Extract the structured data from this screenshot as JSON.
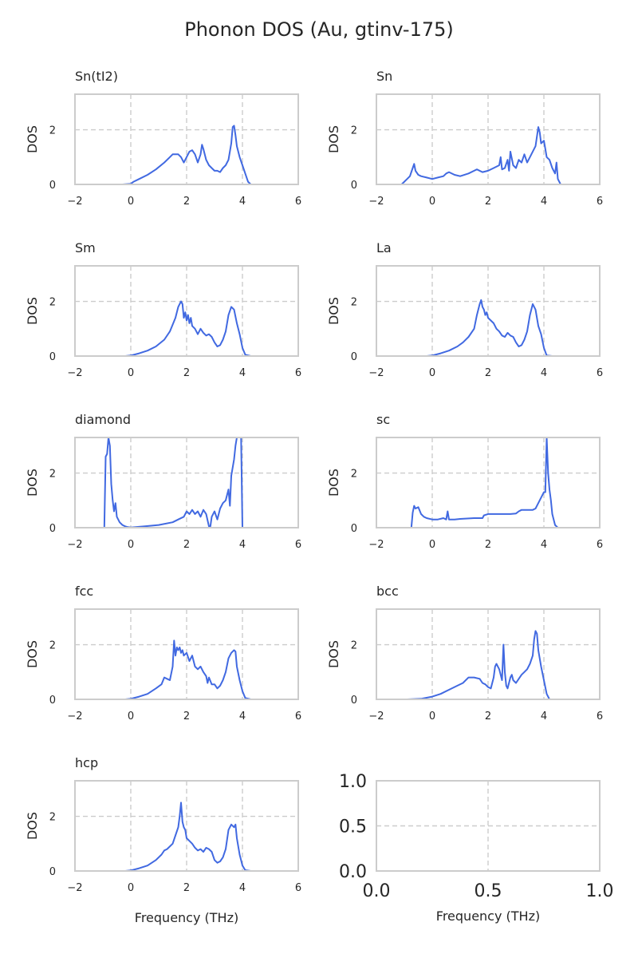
{
  "figure_title": "Phonon DOS (Au, gtinv-175)",
  "colors": {
    "line": "#4169e1",
    "frame": "#cccccc",
    "grid": "#cccccc"
  },
  "chart_data": [
    {
      "type": "line",
      "title": "Sn(tI2)",
      "ylabel": "DOS",
      "xlabel": "",
      "xlim": [
        -2,
        6
      ],
      "ylim": [
        0,
        3.3
      ],
      "xticks": [
        -2,
        0,
        2,
        4,
        6
      ],
      "yticks": [
        0,
        2
      ],
      "grid": true,
      "series": [
        {
          "x": [
            -0.6,
            -0.3,
            0,
            0.1,
            0.3,
            0.6,
            0.9,
            1.2,
            1.4,
            1.5,
            1.6,
            1.7,
            1.8,
            1.9,
            2.0,
            2.1,
            2.2,
            2.3,
            2.4,
            2.5,
            2.55,
            2.6,
            2.7,
            2.8,
            2.9,
            3.0,
            3.1,
            3.2,
            3.3,
            3.4,
            3.5,
            3.6,
            3.65,
            3.7,
            3.75,
            3.8,
            3.9,
            4.0,
            4.1,
            4.2,
            4.3,
            4.5,
            4.8
          ],
          "y": [
            0,
            0,
            0.02,
            0.1,
            0.2,
            0.35,
            0.55,
            0.8,
            1.0,
            1.1,
            1.1,
            1.1,
            1.0,
            0.8,
            1.0,
            1.2,
            1.25,
            1.1,
            0.8,
            1.1,
            1.45,
            1.3,
            0.9,
            0.7,
            0.6,
            0.5,
            0.5,
            0.45,
            0.6,
            0.7,
            0.9,
            1.5,
            2.1,
            2.15,
            1.8,
            1.4,
            1.0,
            0.7,
            0.4,
            0.1,
            0.0,
            0.0,
            0.0
          ]
        }
      ]
    },
    {
      "type": "line",
      "title": "Sn",
      "ylabel": "DOS",
      "xlabel": "",
      "xlim": [
        -2,
        6
      ],
      "ylim": [
        0,
        3.3
      ],
      "xticks": [
        -2,
        0,
        2,
        4,
        6
      ],
      "yticks": [
        0,
        2
      ],
      "grid": true,
      "series": [
        {
          "x": [
            -1.6,
            -1.1,
            -1.0,
            -0.9,
            -0.8,
            -0.7,
            -0.65,
            -0.6,
            -0.5,
            -0.4,
            -0.2,
            0,
            0.2,
            0.4,
            0.5,
            0.6,
            0.8,
            1.0,
            1.3,
            1.5,
            1.6,
            1.8,
            2.0,
            2.2,
            2.4,
            2.45,
            2.5,
            2.6,
            2.7,
            2.75,
            2.8,
            2.9,
            3.0,
            3.1,
            3.2,
            3.3,
            3.4,
            3.5,
            3.6,
            3.7,
            3.8,
            3.85,
            3.9,
            4.0,
            4.05,
            4.1,
            4.2,
            4.3,
            4.4,
            4.45,
            4.5,
            4.6,
            5.0
          ],
          "y": [
            0,
            0,
            0.1,
            0.2,
            0.3,
            0.6,
            0.75,
            0.5,
            0.35,
            0.3,
            0.25,
            0.2,
            0.25,
            0.3,
            0.4,
            0.45,
            0.35,
            0.3,
            0.4,
            0.5,
            0.55,
            0.45,
            0.5,
            0.6,
            0.7,
            1.0,
            0.55,
            0.6,
            0.9,
            0.5,
            1.2,
            0.7,
            0.6,
            0.9,
            0.8,
            1.1,
            0.8,
            1.0,
            1.2,
            1.4,
            2.1,
            1.9,
            1.5,
            1.6,
            1.3,
            1.0,
            0.9,
            0.6,
            0.4,
            0.8,
            0.2,
            0.0,
            0.0
          ]
        }
      ]
    },
    {
      "type": "line",
      "title": "Sm",
      "ylabel": "DOS",
      "xlabel": "",
      "xlim": [
        -2,
        6
      ],
      "ylim": [
        0,
        3.3
      ],
      "xticks": [
        -2,
        0,
        2,
        4,
        6
      ],
      "yticks": [
        0,
        2
      ],
      "grid": true,
      "series": [
        {
          "x": [
            -0.2,
            0,
            0.3,
            0.6,
            0.9,
            1.2,
            1.4,
            1.6,
            1.7,
            1.8,
            1.85,
            1.9,
            1.95,
            2.0,
            2.05,
            2.1,
            2.15,
            2.2,
            2.3,
            2.4,
            2.5,
            2.6,
            2.7,
            2.8,
            2.9,
            3.0,
            3.1,
            3.2,
            3.3,
            3.4,
            3.5,
            3.6,
            3.7,
            3.8,
            3.9,
            4.0,
            4.1,
            4.3,
            4.5
          ],
          "y": [
            0,
            0.02,
            0.1,
            0.2,
            0.35,
            0.6,
            0.9,
            1.4,
            1.8,
            2.0,
            1.9,
            1.4,
            1.6,
            1.3,
            1.5,
            1.2,
            1.4,
            1.1,
            1.0,
            0.8,
            1.0,
            0.85,
            0.75,
            0.8,
            0.7,
            0.5,
            0.35,
            0.4,
            0.6,
            0.9,
            1.5,
            1.8,
            1.7,
            1.2,
            0.8,
            0.3,
            0.05,
            0.0,
            0.0
          ]
        }
      ]
    },
    {
      "type": "line",
      "title": "La",
      "ylabel": "DOS",
      "xlabel": "",
      "xlim": [
        -2,
        6
      ],
      "ylim": [
        0,
        3.3
      ],
      "xticks": [
        -2,
        0,
        2,
        4,
        6
      ],
      "yticks": [
        0,
        2
      ],
      "grid": true,
      "series": [
        {
          "x": [
            -0.2,
            0,
            0.3,
            0.6,
            0.9,
            1.1,
            1.3,
            1.5,
            1.6,
            1.7,
            1.75,
            1.8,
            1.85,
            1.9,
            1.95,
            2.0,
            2.1,
            2.2,
            2.3,
            2.4,
            2.5,
            2.6,
            2.7,
            2.8,
            2.9,
            3.0,
            3.1,
            3.2,
            3.3,
            3.4,
            3.5,
            3.6,
            3.7,
            3.8,
            3.9,
            4.0,
            4.1,
            4.3,
            4.5
          ],
          "y": [
            0,
            0.02,
            0.1,
            0.2,
            0.35,
            0.5,
            0.7,
            1.0,
            1.5,
            1.9,
            2.05,
            1.8,
            1.7,
            1.5,
            1.6,
            1.4,
            1.3,
            1.2,
            1.0,
            0.9,
            0.75,
            0.7,
            0.85,
            0.75,
            0.7,
            0.5,
            0.35,
            0.4,
            0.6,
            0.9,
            1.5,
            1.9,
            1.7,
            1.1,
            0.8,
            0.3,
            0.02,
            0.0,
            0.0
          ]
        }
      ]
    },
    {
      "type": "line",
      "title": "diamond",
      "ylabel": "DOS",
      "xlabel": "",
      "xlim": [
        -2,
        6
      ],
      "ylim": [
        0,
        3.3
      ],
      "xticks": [
        -2,
        0,
        2,
        4,
        6
      ],
      "yticks": [
        0,
        2
      ],
      "grid": true,
      "series": [
        {
          "x": [
            -1.4,
            -0.95,
            -0.9,
            -0.85,
            -0.8,
            -0.75,
            -0.7,
            -0.65,
            -0.6,
            -0.55,
            -0.5,
            -0.4,
            -0.3,
            -0.2,
            -0.1,
            0,
            0.5,
            1.0,
            1.5,
            1.7,
            1.9,
            2.0,
            2.1,
            2.2,
            2.3,
            2.4,
            2.5,
            2.6,
            2.7,
            2.8,
            2.85,
            2.9,
            3.0,
            3.1,
            3.2,
            3.3,
            3.4,
            3.5,
            3.55,
            3.6,
            3.7,
            3.75,
            3.8,
            3.85,
            3.9,
            3.95,
            4.0,
            4.5
          ],
          "y": [
            0,
            0,
            2.6,
            2.7,
            3.3,
            3.0,
            1.6,
            1.0,
            0.6,
            0.9,
            0.4,
            0.2,
            0.1,
            0.05,
            0.02,
            0.01,
            0.05,
            0.1,
            0.2,
            0.3,
            0.4,
            0.6,
            0.5,
            0.65,
            0.5,
            0.6,
            0.4,
            0.65,
            0.5,
            0.05,
            0.05,
            0.4,
            0.6,
            0.3,
            0.7,
            0.9,
            1.0,
            1.4,
            0.8,
            1.9,
            2.5,
            3.0,
            3.3,
            3.3,
            3.3,
            3.3,
            0.0,
            0.0
          ]
        }
      ]
    },
    {
      "type": "line",
      "title": "sc",
      "ylabel": "DOS",
      "xlabel": "",
      "xlim": [
        -2,
        6
      ],
      "ylim": [
        0,
        3.3
      ],
      "xticks": [
        -2,
        0,
        2,
        4,
        6
      ],
      "yticks": [
        0,
        2
      ],
      "grid": true,
      "series": [
        {
          "x": [
            -1.2,
            -0.75,
            -0.7,
            -0.65,
            -0.6,
            -0.5,
            -0.4,
            -0.3,
            -0.2,
            0,
            0.2,
            0.4,
            0.5,
            0.55,
            0.6,
            0.8,
            1.0,
            1.5,
            1.7,
            1.8,
            1.85,
            2.0,
            2.4,
            2.8,
            3.0,
            3.1,
            3.2,
            3.4,
            3.6,
            3.7,
            3.8,
            3.9,
            4.0,
            4.05,
            4.1,
            4.15,
            4.2,
            4.25,
            4.3,
            4.4,
            4.5,
            5.0
          ],
          "y": [
            0,
            0,
            0.55,
            0.8,
            0.7,
            0.75,
            0.5,
            0.4,
            0.35,
            0.3,
            0.3,
            0.35,
            0.3,
            0.6,
            0.3,
            0.3,
            0.32,
            0.35,
            0.35,
            0.35,
            0.45,
            0.5,
            0.5,
            0.5,
            0.52,
            0.6,
            0.65,
            0.65,
            0.65,
            0.7,
            0.9,
            1.1,
            1.3,
            1.3,
            3.3,
            2.0,
            1.4,
            1.0,
            0.5,
            0.1,
            0.0,
            0.0
          ]
        }
      ]
    },
    {
      "type": "line",
      "title": "fcc",
      "ylabel": "DOS",
      "xlabel": "",
      "xlim": [
        -2,
        6
      ],
      "ylim": [
        0,
        3.3
      ],
      "xticks": [
        -2,
        0,
        2,
        4,
        6
      ],
      "yticks": [
        0,
        2
      ],
      "grid": true,
      "series": [
        {
          "x": [
            -0.2,
            0,
            0.3,
            0.6,
            0.9,
            1.1,
            1.2,
            1.3,
            1.4,
            1.5,
            1.55,
            1.6,
            1.65,
            1.7,
            1.75,
            1.8,
            1.85,
            1.9,
            2.0,
            2.1,
            2.2,
            2.3,
            2.4,
            2.5,
            2.6,
            2.7,
            2.75,
            2.8,
            2.9,
            3.0,
            3.1,
            3.2,
            3.3,
            3.4,
            3.5,
            3.6,
            3.7,
            3.75,
            3.8,
            3.9,
            4.0,
            4.1,
            4.3,
            4.5
          ],
          "y": [
            0,
            0.02,
            0.1,
            0.2,
            0.4,
            0.55,
            0.8,
            0.75,
            0.7,
            1.2,
            2.15,
            1.6,
            1.9,
            1.8,
            1.9,
            1.7,
            1.8,
            1.6,
            1.7,
            1.4,
            1.6,
            1.2,
            1.1,
            1.2,
            1.0,
            0.85,
            0.6,
            0.8,
            0.55,
            0.55,
            0.4,
            0.5,
            0.7,
            1.0,
            1.5,
            1.7,
            1.8,
            1.75,
            1.2,
            0.7,
            0.3,
            0.05,
            0.0,
            0.0
          ]
        }
      ]
    },
    {
      "type": "line",
      "title": "bcc",
      "ylabel": "DOS",
      "xlabel": "",
      "xlim": [
        -2,
        6
      ],
      "ylim": [
        0,
        3.3
      ],
      "xticks": [
        -2,
        0,
        2,
        4,
        6
      ],
      "yticks": [
        0,
        2
      ],
      "grid": true,
      "series": [
        {
          "x": [
            -0.9,
            -0.4,
            0,
            0.3,
            0.6,
            0.9,
            1.1,
            1.3,
            1.5,
            1.7,
            1.8,
            1.9,
            2.0,
            2.1,
            2.2,
            2.25,
            2.3,
            2.4,
            2.5,
            2.55,
            2.6,
            2.65,
            2.7,
            2.8,
            2.85,
            2.9,
            3.0,
            3.1,
            3.2,
            3.3,
            3.4,
            3.5,
            3.6,
            3.65,
            3.7,
            3.75,
            3.8,
            3.9,
            4.0,
            4.1,
            4.2,
            4.6
          ],
          "y": [
            0,
            0.02,
            0.1,
            0.2,
            0.35,
            0.5,
            0.6,
            0.8,
            0.8,
            0.75,
            0.6,
            0.55,
            0.45,
            0.4,
            0.8,
            1.2,
            1.3,
            1.1,
            0.7,
            2.0,
            1.0,
            0.5,
            0.4,
            0.8,
            0.9,
            0.7,
            0.6,
            0.75,
            0.9,
            1.0,
            1.1,
            1.3,
            1.6,
            2.2,
            2.5,
            2.4,
            1.8,
            1.2,
            0.7,
            0.2,
            0.0,
            0.0
          ]
        }
      ]
    },
    {
      "type": "line",
      "title": "hcp",
      "ylabel": "DOS",
      "xlabel": "Frequency (THz)",
      "xlim": [
        -2,
        6
      ],
      "ylim": [
        0,
        3.3
      ],
      "xticks": [
        -2,
        0,
        2,
        4,
        6
      ],
      "yticks": [
        0,
        2
      ],
      "grid": true,
      "series": [
        {
          "x": [
            -0.2,
            0,
            0.3,
            0.6,
            0.9,
            1.1,
            1.2,
            1.3,
            1.5,
            1.6,
            1.7,
            1.75,
            1.8,
            1.85,
            1.9,
            1.95,
            2.0,
            2.1,
            2.2,
            2.3,
            2.4,
            2.5,
            2.6,
            2.7,
            2.8,
            2.9,
            3.0,
            3.1,
            3.2,
            3.3,
            3.4,
            3.5,
            3.6,
            3.7,
            3.75,
            3.8,
            3.9,
            4.0,
            4.1,
            4.3,
            4.5
          ],
          "y": [
            0,
            0.02,
            0.1,
            0.2,
            0.4,
            0.6,
            0.75,
            0.8,
            1.0,
            1.3,
            1.6,
            2.0,
            2.5,
            1.8,
            1.6,
            1.5,
            1.2,
            1.1,
            1.0,
            0.85,
            0.75,
            0.8,
            0.7,
            0.85,
            0.8,
            0.7,
            0.4,
            0.3,
            0.35,
            0.5,
            0.8,
            1.5,
            1.7,
            1.6,
            1.7,
            1.2,
            0.6,
            0.2,
            0.03,
            0.0,
            0.0
          ]
        }
      ]
    },
    {
      "type": "line",
      "title": "",
      "ylabel": "",
      "xlabel": "Frequency (THz)",
      "xlim": [
        0,
        1
      ],
      "ylim": [
        0,
        1
      ],
      "xticks": [
        0.0,
        0.5,
        1.0
      ],
      "yticks": [
        0.0,
        0.5,
        1.0
      ],
      "tick_labels_x": [
        "0.0",
        "0.5",
        "1.0"
      ],
      "tick_labels_y": [
        "0.0",
        "0.5",
        "1.0"
      ],
      "grid": true,
      "series": []
    }
  ]
}
